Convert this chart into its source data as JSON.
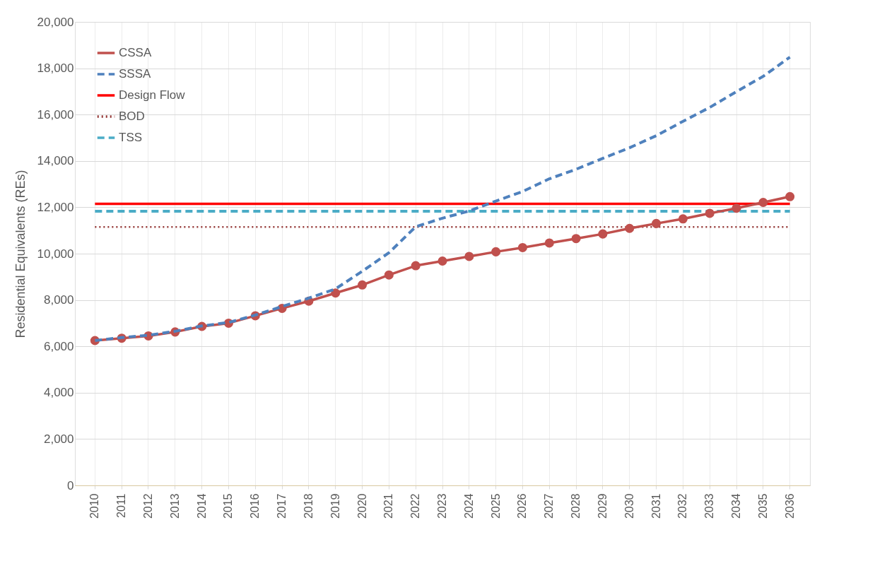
{
  "chart_data": {
    "type": "line",
    "ylabel": "Residential Equivalents (REs)",
    "categories": [
      "2010",
      "2011",
      "2012",
      "2013",
      "2014",
      "2015",
      "2016",
      "2017",
      "2018",
      "2019",
      "2020",
      "2021",
      "2022",
      "2023",
      "2024",
      "2025",
      "2026",
      "2027",
      "2028",
      "2029",
      "2030",
      "2031",
      "2032",
      "2033",
      "2034",
      "2035",
      "2036"
    ],
    "series": [
      {
        "name": "CSSA",
        "color": "#c0504d",
        "marker": "circle",
        "line_style": "solid",
        "values": [
          6250,
          6350,
          6450,
          6620,
          6860,
          7000,
          7320,
          7640,
          7950,
          8300,
          8650,
          9080,
          9480,
          9680,
          9880,
          10080,
          10260,
          10460,
          10650,
          10850,
          11090,
          11300,
          11500,
          11740,
          11960,
          12210,
          12460
        ]
      },
      {
        "name": "SSSA",
        "color": "#4f81bd",
        "marker": "none",
        "line_style": "dashed",
        "values": [
          6250,
          6380,
          6480,
          6650,
          6880,
          7030,
          7350,
          7720,
          8080,
          8480,
          9240,
          10040,
          11160,
          11530,
          11840,
          12270,
          12680,
          13230,
          13640,
          14110,
          14570,
          15090,
          15710,
          16310,
          16990,
          17650,
          18480
        ]
      }
    ],
    "ref_lines": [
      {
        "axis": "y",
        "value": 12150,
        "label": "Design Flow",
        "color": "#ff0000",
        "line_style": "solid"
      },
      {
        "axis": "y",
        "value": 11150,
        "label": "BOD",
        "color": "#943634",
        "line_style": "dotted"
      },
      {
        "axis": "y",
        "value": 11830,
        "label": "TSS",
        "color": "#4bacc6",
        "line_style": "dashed"
      }
    ],
    "ylim": [
      0,
      20000
    ],
    "yticks": [
      0,
      {
        "value": 2000,
        "label": "2,000"
      },
      {
        "value": 4000,
        "label": "4,000"
      },
      {
        "value": 6000,
        "label": "6,000"
      },
      {
        "value": 8000,
        "label": "8,000"
      },
      {
        "value": 10000,
        "label": "10,000"
      },
      {
        "value": 12000,
        "label": "12,000"
      },
      {
        "value": 14000,
        "label": "14,000"
      },
      {
        "value": 16000,
        "label": "16,000"
      },
      {
        "value": 18000,
        "label": "18,000"
      },
      {
        "value": 20000,
        "label": "20,000"
      }
    ],
    "grid": true,
    "legend": "top left"
  }
}
